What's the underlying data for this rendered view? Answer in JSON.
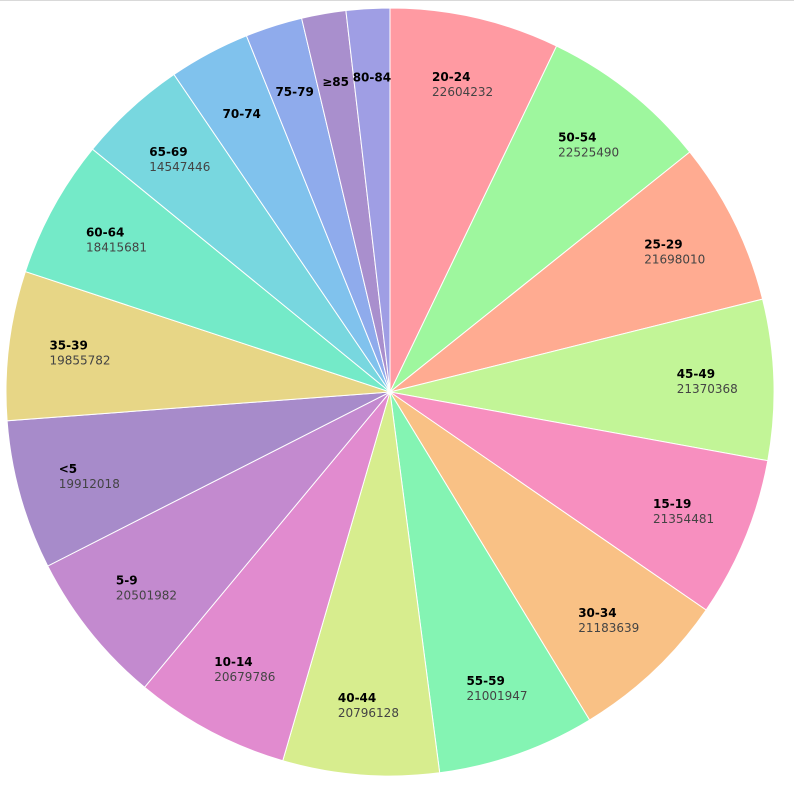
{
  "chart_data": {
    "type": "pie",
    "title": "",
    "slices": [
      {
        "label": "20-24",
        "value": 22604232,
        "value_text": "22604232",
        "color": "#ff9aa2"
      },
      {
        "label": "50-54",
        "value": 22525490,
        "value_text": "22525490",
        "color": "#9ef79e"
      },
      {
        "label": "25-29",
        "value": 21698010,
        "value_text": "21698010",
        "color": "#ffab91"
      },
      {
        "label": "45-49",
        "value": 21370368,
        "value_text": "21370368",
        "color": "#c2f597"
      },
      {
        "label": "15-19",
        "value": 21354481,
        "value_text": "21354481",
        "color": "#f78fbf"
      },
      {
        "label": "30-34",
        "value": 21183639,
        "value_text": "21183639",
        "color": "#f9c185"
      },
      {
        "label": "55-59",
        "value": 21001947,
        "value_text": "21001947",
        "color": "#84f4b3"
      },
      {
        "label": "40-44",
        "value": 20796128,
        "value_text": "20796128",
        "color": "#d7ed8e"
      },
      {
        "label": "10-14",
        "value": 20679786,
        "value_text": "20679786",
        "color": "#e18bcf"
      },
      {
        "label": "5-9",
        "value": 20501982,
        "value_text": "20501982",
        "color": "#c38acf"
      },
      {
        "label": "<5",
        "value": 19912018,
        "value_text": "19912018",
        "color": "#a78bca"
      },
      {
        "label": "35-39",
        "value": 19855782,
        "value_text": "19855782",
        "color": "#e7d686"
      },
      {
        "label": "60-64",
        "value": 18415681,
        "value_text": "18415681",
        "color": "#74eac8"
      },
      {
        "label": "65-69",
        "value": 14547446,
        "value_text": "14547446",
        "color": "#78d7df"
      },
      {
        "label": "70-74",
        "value": 10800000,
        "value_text": "",
        "color": "#80c2ed"
      },
      {
        "label": "75-79",
        "value": 7600000,
        "value_text": "",
        "color": "#8fabec"
      },
      {
        "label": "≥85",
        "value": 5900000,
        "value_text": "",
        "color": "#a98fcd"
      },
      {
        "label": "80-84",
        "value": 5800000,
        "value_text": "",
        "color": "#9f9ee4"
      }
    ]
  }
}
